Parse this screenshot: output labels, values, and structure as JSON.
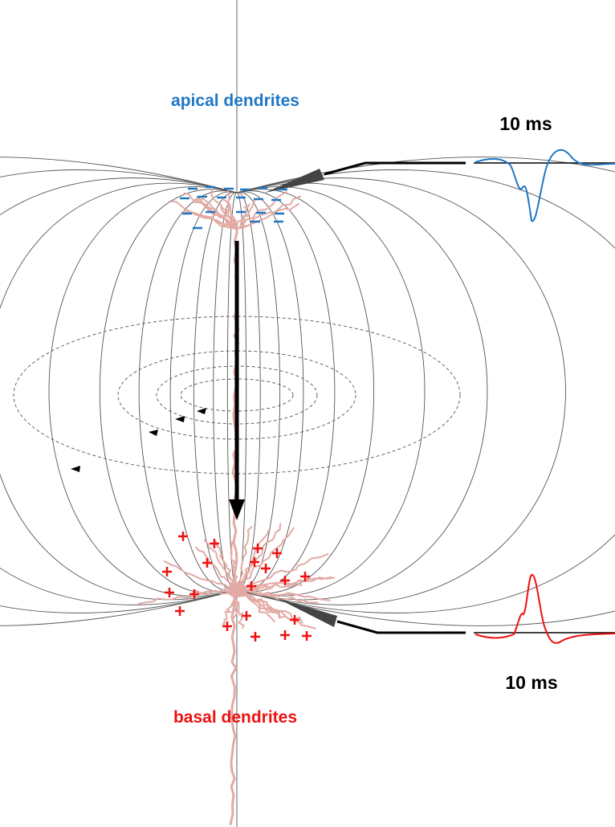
{
  "labels": {
    "apical": "apical dendrites",
    "basal": "basal dendrites"
  },
  "traces": [
    {
      "scale": "10 ms"
    },
    {
      "scale": "10 ms"
    }
  ]
}
